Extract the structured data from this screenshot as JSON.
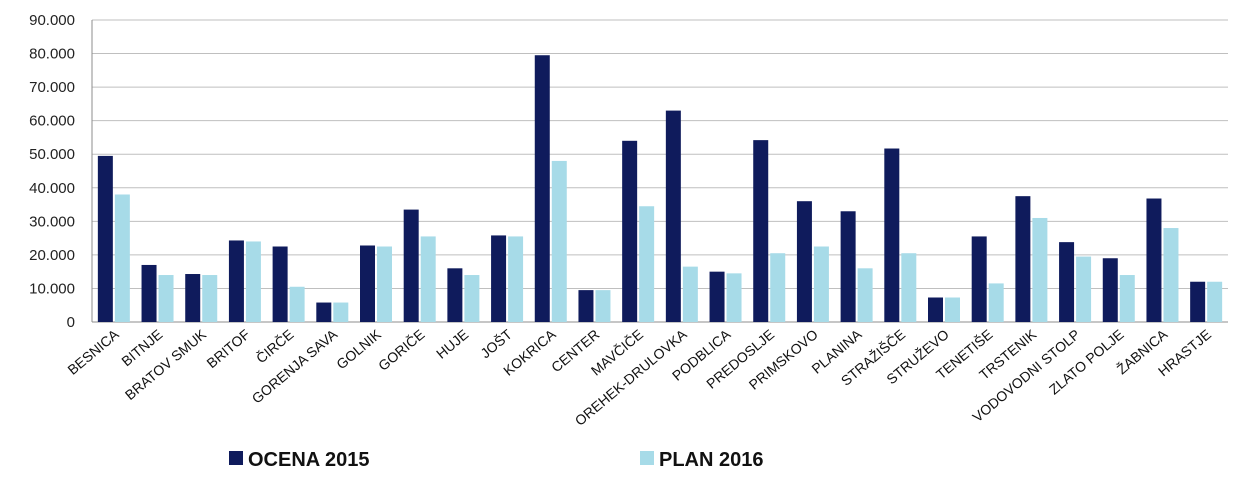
{
  "chart_data": {
    "type": "bar",
    "categories": [
      "BESNICA",
      "BITNJE",
      "BRATOV SMUK",
      "BRITOF",
      "ČIRČE",
      "GORENJA SAVA",
      "GOLNIK",
      "GORIČE",
      "HUJE",
      "JOŠT",
      "KOKRICA",
      "CENTER",
      "MAVČIČE",
      "OREHEK-DRULOVKA",
      "PODBLICA",
      "PREDOSLJE",
      "PRIMSKOVO",
      "PLANINA",
      "STRAŽIŠČE",
      "STRUŽEVO",
      "TENETIŠE",
      "TRSTENIK",
      "VODOVODNI STOLP",
      "ZLATO POLJE",
      "ŽABNICA",
      "HRASTJE"
    ],
    "series": [
      {
        "name": "OCENA 2015",
        "color": "#0f1b5c",
        "values": [
          49500,
          17000,
          14300,
          24300,
          22500,
          5800,
          22800,
          33500,
          16000,
          25800,
          79500,
          9500,
          54000,
          63000,
          15000,
          54200,
          36000,
          33000,
          51700,
          7300,
          25500,
          37500,
          23800,
          19000,
          36800,
          12000
        ]
      },
      {
        "name": "PLAN 2016",
        "color": "#a7dbe8",
        "values": [
          38000,
          14000,
          14000,
          24000,
          10500,
          5800,
          22500,
          25500,
          14000,
          25500,
          48000,
          9500,
          34500,
          16500,
          14500,
          20500,
          22500,
          16000,
          20500,
          7300,
          11500,
          31000,
          19500,
          14000,
          28000,
          12000
        ]
      }
    ],
    "yticks": [
      "0",
      "10.000",
      "20.000",
      "30.000",
      "40.000",
      "50.000",
      "60.000",
      "70.000",
      "80.000",
      "90.000"
    ],
    "ylim": [
      0,
      90000
    ],
    "grid": true,
    "legend": "bottom-center"
  }
}
